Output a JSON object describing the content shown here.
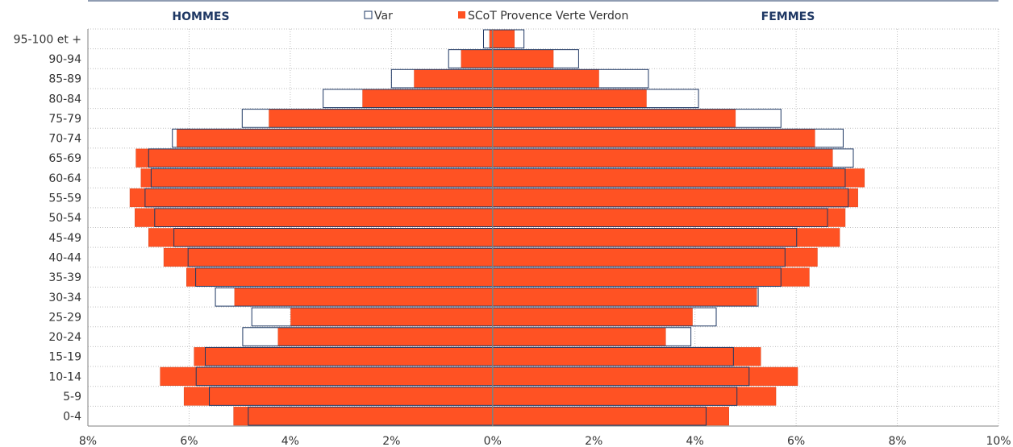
{
  "chart_data": {
    "type": "bar",
    "orientation": "horizontal",
    "subtype": "population-pyramid",
    "side_labels": {
      "left": "HOMMES",
      "right": "FEMMES"
    },
    "categories": [
      "95-100 et +",
      "90-94",
      "85-89",
      "80-84",
      "75-79",
      "70-74",
      "65-69",
      "60-64",
      "55-59",
      "50-54",
      "45-49",
      "40-44",
      "35-39",
      "30-34",
      "25-29",
      "20-24",
      "15-19",
      "10-14",
      "5-9",
      "0-4"
    ],
    "series": [
      {
        "name": "Var",
        "style": "outline",
        "hommes": [
          0.18,
          0.87,
          2.0,
          3.35,
          4.95,
          6.33,
          6.8,
          6.75,
          6.87,
          6.68,
          6.3,
          6.02,
          5.87,
          5.48,
          4.76,
          4.94,
          5.68,
          5.86,
          5.6,
          4.83
        ],
        "femmes": [
          0.62,
          1.7,
          3.08,
          4.07,
          5.7,
          6.93,
          7.13,
          6.97,
          7.03,
          6.62,
          6.01,
          5.78,
          5.7,
          5.25,
          4.42,
          3.92,
          4.76,
          5.07,
          4.83,
          4.22
        ]
      },
      {
        "name": "SCoT Provence Verte Verdon",
        "style": "fill",
        "hommes": [
          0.06,
          0.62,
          1.55,
          2.57,
          4.42,
          6.24,
          7.05,
          6.95,
          7.17,
          7.07,
          6.8,
          6.5,
          6.05,
          5.1,
          3.99,
          4.24,
          5.9,
          6.57,
          6.1,
          5.12
        ],
        "femmes": [
          0.43,
          1.2,
          2.1,
          3.04,
          4.8,
          6.37,
          6.72,
          7.35,
          7.22,
          6.97,
          6.86,
          6.42,
          6.26,
          5.22,
          3.95,
          3.42,
          5.3,
          6.03,
          5.6,
          4.67
        ]
      }
    ],
    "xlim": [
      -8,
      10
    ],
    "xticks": [
      -8,
      -6,
      -4,
      -2,
      0,
      2,
      4,
      6,
      8,
      10
    ],
    "xtick_labels": [
      "8%",
      "6%",
      "4%",
      "2%",
      "0%",
      "2%",
      "4%",
      "6%",
      "8%",
      "10%"
    ],
    "grid": true,
    "legend_position": "top-center",
    "colors": {
      "fill": "#ff5223",
      "fill_stroke": "#d8421a",
      "outline": "#1f3864",
      "grid": "#bfbfbf"
    }
  }
}
